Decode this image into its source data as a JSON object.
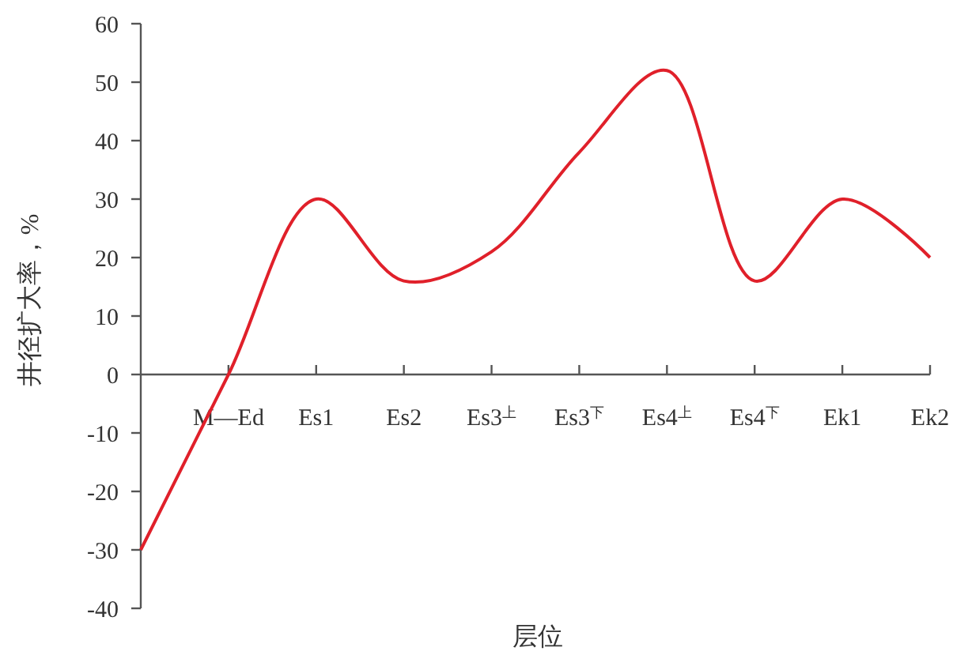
{
  "chart_data": {
    "type": "line",
    "xlabel": "层位",
    "ylabel": "井径扩大率，%",
    "categories": [
      null,
      "M—Ed",
      "Es1",
      "Es2",
      "Es3$^{上}$",
      "Es3$^{下}$",
      "Es4$^{上}$",
      "Es4$^{下}$",
      "Ek1",
      "Ek2"
    ],
    "series": [
      {
        "color": "#e0202a",
        "values": [
          -30,
          0,
          30,
          16,
          21,
          38,
          52,
          16,
          30,
          20
        ]
      }
    ],
    "ylim": [
      -40,
      60
    ],
    "yticks": [
      -40,
      -30,
      -20,
      -10,
      0,
      10,
      20,
      30,
      40,
      50,
      60
    ],
    "grid": false,
    "marker": "none",
    "line_style": "solid"
  }
}
